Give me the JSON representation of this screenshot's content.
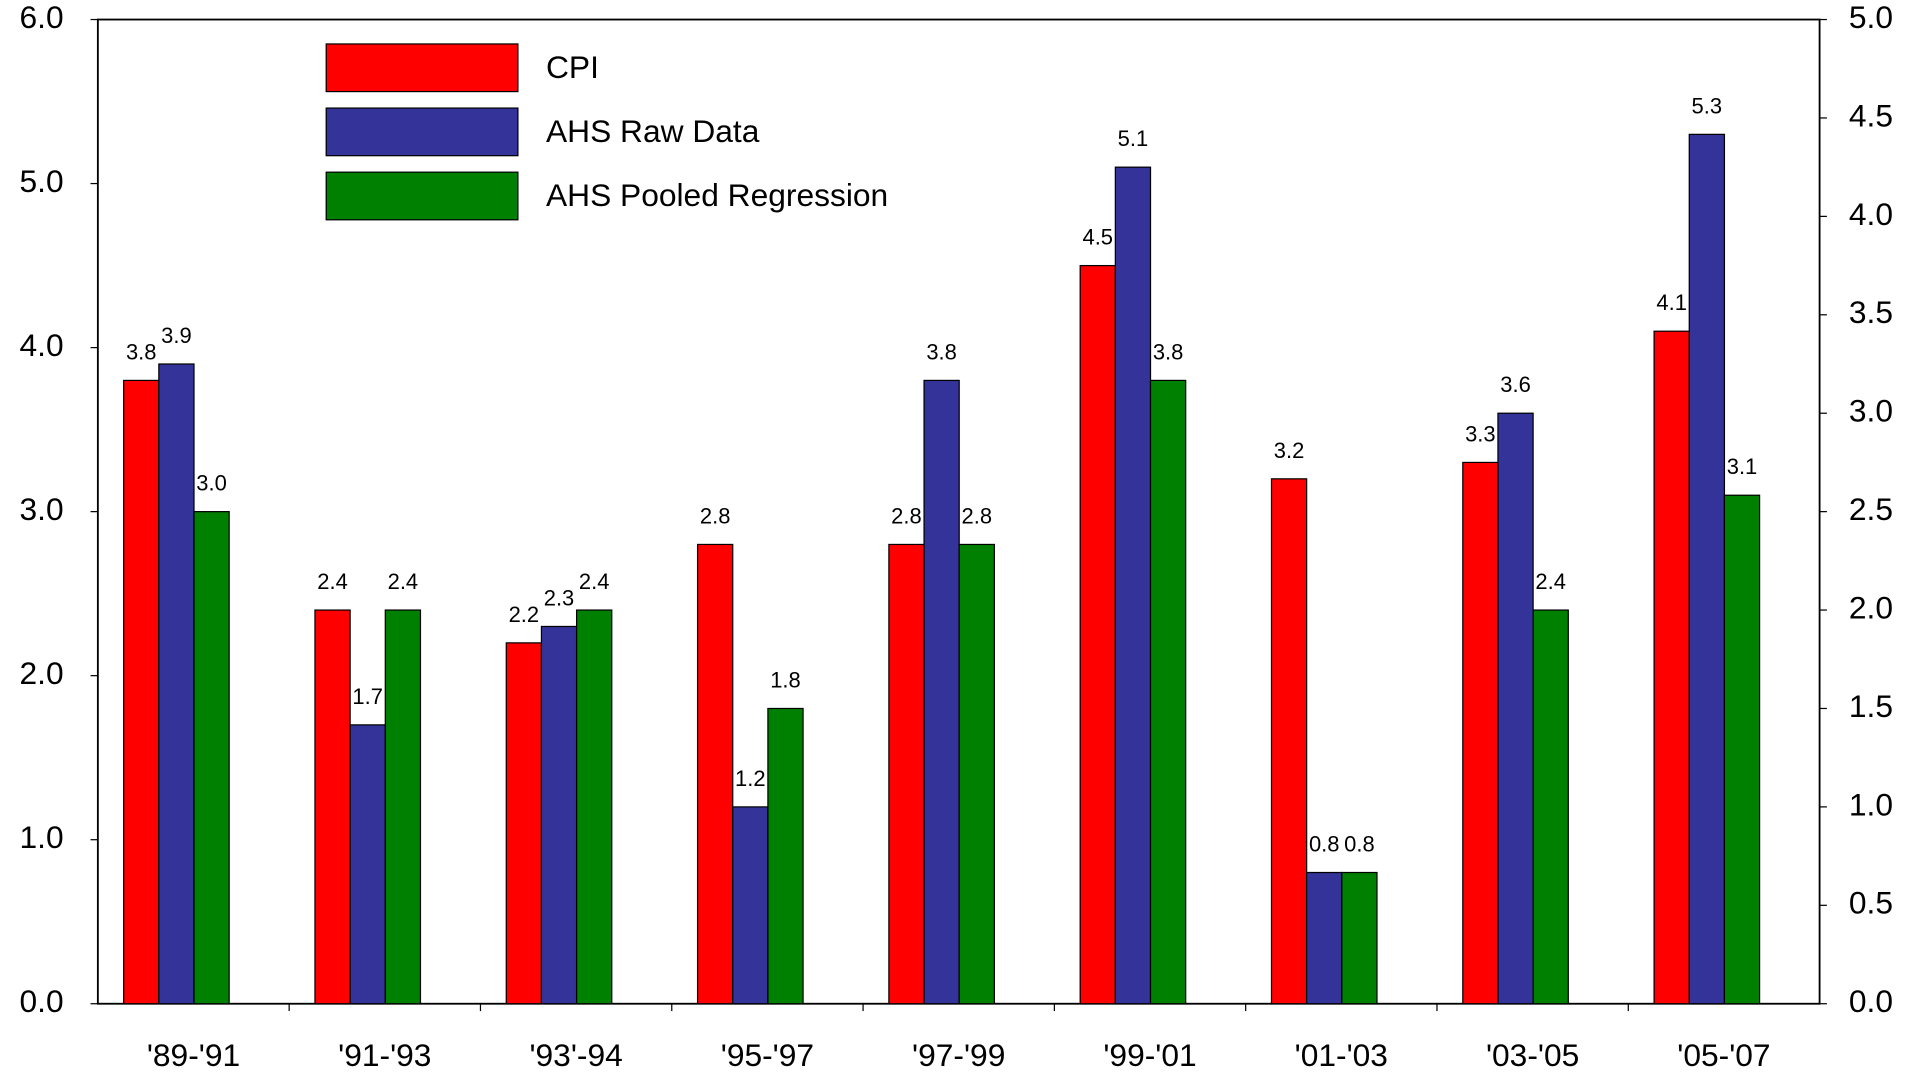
{
  "chart_data": {
    "type": "bar",
    "categories": [
      "'89-'91",
      "'91-'93",
      "'93'-94",
      "'95-'97",
      "'97-'99",
      "'99-'01",
      "'01-'03",
      "'03-'05",
      "'05-'07"
    ],
    "series": [
      {
        "name": "CPI",
        "color": "#ff0000",
        "values": [
          3.8,
          2.4,
          2.2,
          2.8,
          2.8,
          4.5,
          3.2,
          3.3,
          4.1
        ],
        "value_labels": [
          "3.8",
          "2.4",
          "2.2",
          "2.8",
          "2.8",
          "4.5",
          "3.2",
          "3.3",
          "4.1"
        ]
      },
      {
        "name": "AHS Raw Data",
        "color": "#333399",
        "values": [
          3.9,
          1.7,
          2.3,
          1.2,
          3.8,
          5.1,
          0.8,
          3.6,
          5.3
        ],
        "value_labels": [
          "3.9",
          "1.7",
          "2.3",
          "1.2",
          "3.8",
          "5.1",
          "0.8",
          "3.6",
          "5.3"
        ]
      },
      {
        "name": "AHS Pooled Regression",
        "color": "#008000",
        "values": [
          3.0,
          2.4,
          2.4,
          1.8,
          2.8,
          3.8,
          0.8,
          2.4,
          3.1
        ],
        "value_labels": [
          "3.0",
          "2.4",
          "2.4",
          "1.8",
          "2.8",
          "3.8",
          "0.8",
          "2.4",
          "3.1"
        ]
      }
    ],
    "ylim": [
      0,
      6
    ],
    "yticks": [
      {
        "value": 0,
        "label": "0.0"
      },
      {
        "value": 1,
        "label": "1.0"
      },
      {
        "value": 2,
        "label": "2.0"
      },
      {
        "value": 3,
        "label": "3.0"
      },
      {
        "value": 4,
        "label": "4.0"
      },
      {
        "value": 5,
        "label": "5.0"
      },
      {
        "value": 6,
        "label": "6.0"
      }
    ],
    "y2lim": [
      0,
      5
    ],
    "y2ticks": [
      {
        "value": 0,
        "label": "0.0"
      },
      {
        "value": 0.5,
        "label": "0.5"
      },
      {
        "value": 1,
        "label": "1.0"
      },
      {
        "value": 1.5,
        "label": "1.5"
      },
      {
        "value": 2,
        "label": "2.0"
      },
      {
        "value": 2.5,
        "label": "2.5"
      },
      {
        "value": 3,
        "label": "3.0"
      },
      {
        "value": 3.5,
        "label": "3.5"
      },
      {
        "value": 4,
        "label": "4.0"
      },
      {
        "value": 4.5,
        "label": "4.5"
      },
      {
        "value": 5,
        "label": "5.0"
      }
    ],
    "legend": "upper-left"
  }
}
